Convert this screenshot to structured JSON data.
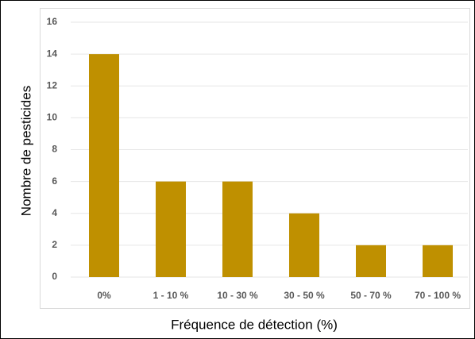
{
  "chart_data": {
    "type": "bar",
    "x_label": "Fréquence de détection (%)",
    "y_label": "Nombre de pesticides",
    "categories": [
      "0%",
      "1 - 10 %",
      "10 - 30 %",
      "30 - 50 %",
      "50 - 70 %",
      "70 - 100 %"
    ],
    "values": [
      14,
      6,
      6,
      4,
      2,
      2
    ],
    "color": "#bf9000",
    "ylim": [
      0,
      16
    ],
    "yticks": [
      0,
      2,
      4,
      6,
      8,
      10,
      12,
      14,
      16
    ],
    "grid": true
  }
}
